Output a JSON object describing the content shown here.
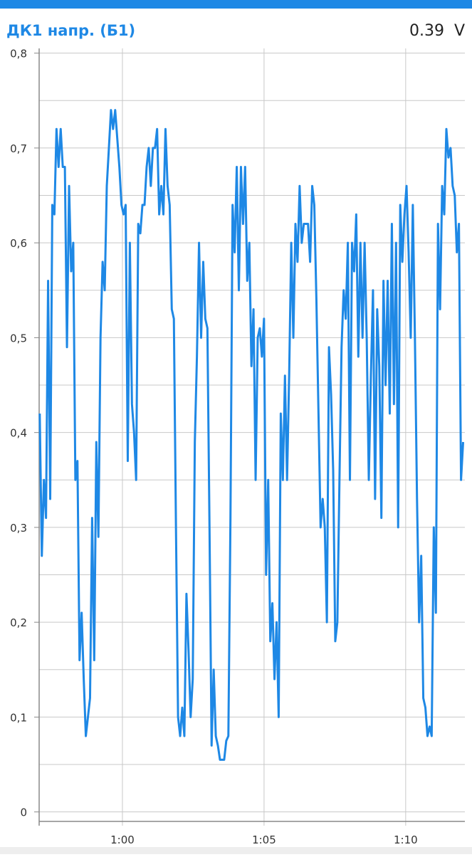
{
  "chart_data": {
    "type": "line",
    "title": "ДК1 напр. (Б1)",
    "current_value": "0.39  V",
    "xlim": [
      57.06,
      72.09
    ],
    "xticks": [
      {
        "value": 60,
        "label": "1:00"
      },
      {
        "value": 65,
        "label": "1:05"
      },
      {
        "value": 70,
        "label": "1:10"
      }
    ],
    "ylim": [
      -0.01,
      0.805
    ],
    "yticks": [
      0,
      {
        "value": 0.1,
        "label": "0,1"
      },
      {
        "value": 0.2,
        "label": "0,2"
      },
      {
        "value": 0.3,
        "label": "0,3"
      },
      {
        "value": 0.4,
        "label": "0,4"
      },
      {
        "value": 0.5,
        "label": "0,5"
      },
      {
        "value": 0.6,
        "label": "0,6"
      },
      {
        "value": 0.7,
        "label": "0,7"
      },
      {
        "value": 0.8,
        "label": "0,8"
      }
    ],
    "y_minor_ticks": [
      0.05,
      0.15,
      0.25,
      0.35,
      0.45,
      0.55,
      0.65,
      0.75
    ],
    "grid": true,
    "x": [
      57.08,
      57.154,
      57.228,
      57.302,
      57.376,
      57.45,
      57.524,
      57.598,
      57.672,
      57.746,
      57.82,
      57.894,
      57.968,
      58.042,
      58.116,
      58.19,
      58.264,
      58.338,
      58.412,
      58.486,
      58.56,
      58.634,
      58.708,
      58.782,
      58.856,
      58.93,
      59.004,
      59.078,
      59.152,
      59.226,
      59.3,
      59.374,
      59.448,
      59.522,
      59.596,
      59.67,
      59.744,
      59.818,
      59.892,
      59.966,
      60.04,
      60.114,
      60.188,
      60.262,
      60.336,
      60.41,
      60.484,
      60.558,
      60.632,
      60.706,
      60.78,
      60.854,
      60.928,
      61.002,
      61.076,
      61.15,
      61.224,
      61.298,
      61.372,
      61.446,
      61.52,
      61.594,
      61.668,
      61.742,
      61.816,
      61.89,
      61.964,
      62.038,
      62.112,
      62.186,
      62.26,
      62.334,
      62.408,
      62.482,
      62.556,
      62.63,
      62.704,
      62.778,
      62.852,
      62.926,
      63,
      63.074,
      63.148,
      63.222,
      63.296,
      63.37,
      63.444,
      63.518,
      63.592,
      63.666,
      63.74,
      63.814,
      63.888,
      63.962,
      64.036,
      64.11,
      64.184,
      64.258,
      64.332,
      64.406,
      64.48,
      64.554,
      64.628,
      64.702,
      64.776,
      64.85,
      64.924,
      64.998,
      65.072,
      65.146,
      65.22,
      65.294,
      65.368,
      65.442,
      65.516,
      65.59,
      65.664,
      65.738,
      65.812,
      65.886,
      65.96,
      66.034,
      66.108,
      66.182,
      66.256,
      66.33,
      66.404,
      66.478,
      66.552,
      66.626,
      66.7,
      66.774,
      66.848,
      66.922,
      66.996,
      67.07,
      67.144,
      67.218,
      67.292,
      67.366,
      67.44,
      67.514,
      67.588,
      67.662,
      67.736,
      67.81,
      67.884,
      67.958,
      68.032,
      68.106,
      68.18,
      68.254,
      68.328,
      68.402,
      68.476,
      68.55,
      68.624,
      68.698,
      68.772,
      68.846,
      68.92,
      68.994,
      69.068,
      69.142,
      69.216,
      69.29,
      69.364,
      69.438,
      69.512,
      69.586,
      69.66,
      69.734,
      69.808,
      69.882,
      69.956,
      70.03,
      70.104,
      70.178,
      70.252,
      70.326,
      70.4,
      70.474,
      70.548,
      70.622,
      70.696,
      70.77,
      70.844,
      70.918,
      70.992,
      71.066,
      71.14,
      71.214,
      71.288,
      71.362,
      71.436,
      71.51,
      71.584,
      71.658,
      71.732,
      71.806,
      71.88,
      71.954,
      72.028
    ],
    "series": [
      {
        "color": "#1e88e5",
        "values": [
          0.42,
          0.27,
          0.35,
          0.31,
          0.56,
          0.33,
          0.64,
          0.63,
          0.72,
          0.68,
          0.72,
          0.68,
          0.68,
          0.49,
          0.66,
          0.57,
          0.6,
          0.35,
          0.37,
          0.16,
          0.21,
          0.14,
          0.08,
          0.1,
          0.12,
          0.31,
          0.16,
          0.39,
          0.29,
          0.5,
          0.58,
          0.55,
          0.66,
          0.7,
          0.74,
          0.72,
          0.74,
          0.71,
          0.68,
          0.64,
          0.63,
          0.64,
          0.37,
          0.6,
          0.43,
          0.4,
          0.35,
          0.62,
          0.61,
          0.64,
          0.64,
          0.68,
          0.7,
          0.66,
          0.7,
          0.7,
          0.72,
          0.63,
          0.66,
          0.63,
          0.72,
          0.66,
          0.64,
          0.53,
          0.52,
          0.3,
          0.1,
          0.08,
          0.11,
          0.08,
          0.23,
          0.17,
          0.1,
          0.14,
          0.39,
          0.48,
          0.6,
          0.5,
          0.58,
          0.52,
          0.51,
          0.3,
          0.07,
          0.15,
          0.08,
          0.07,
          0.055,
          0.055,
          0.055,
          0.075,
          0.08,
          0.31,
          0.64,
          0.59,
          0.68,
          0.55,
          0.68,
          0.62,
          0.68,
          0.56,
          0.6,
          0.47,
          0.53,
          0.35,
          0.5,
          0.51,
          0.48,
          0.52,
          0.25,
          0.35,
          0.18,
          0.22,
          0.14,
          0.2,
          0.1,
          0.42,
          0.35,
          0.46,
          0.35,
          0.46,
          0.6,
          0.5,
          0.62,
          0.58,
          0.66,
          0.6,
          0.62,
          0.62,
          0.62,
          0.58,
          0.66,
          0.64,
          0.54,
          0.42,
          0.3,
          0.33,
          0.3,
          0.2,
          0.49,
          0.44,
          0.36,
          0.18,
          0.2,
          0.35,
          0.49,
          0.55,
          0.52,
          0.6,
          0.35,
          0.6,
          0.57,
          0.63,
          0.48,
          0.6,
          0.5,
          0.6,
          0.5,
          0.35,
          0.46,
          0.55,
          0.33,
          0.53,
          0.47,
          0.31,
          0.56,
          0.45,
          0.56,
          0.42,
          0.62,
          0.43,
          0.6,
          0.3,
          0.64,
          0.58,
          0.63,
          0.66,
          0.59,
          0.5,
          0.64,
          0.5,
          0.33,
          0.2,
          0.27,
          0.12,
          0.11,
          0.08,
          0.09,
          0.08,
          0.3,
          0.21,
          0.62,
          0.53,
          0.66,
          0.63,
          0.72,
          0.69,
          0.7,
          0.66,
          0.65,
          0.59,
          0.62,
          0.35,
          0.39
        ]
      }
    ]
  }
}
